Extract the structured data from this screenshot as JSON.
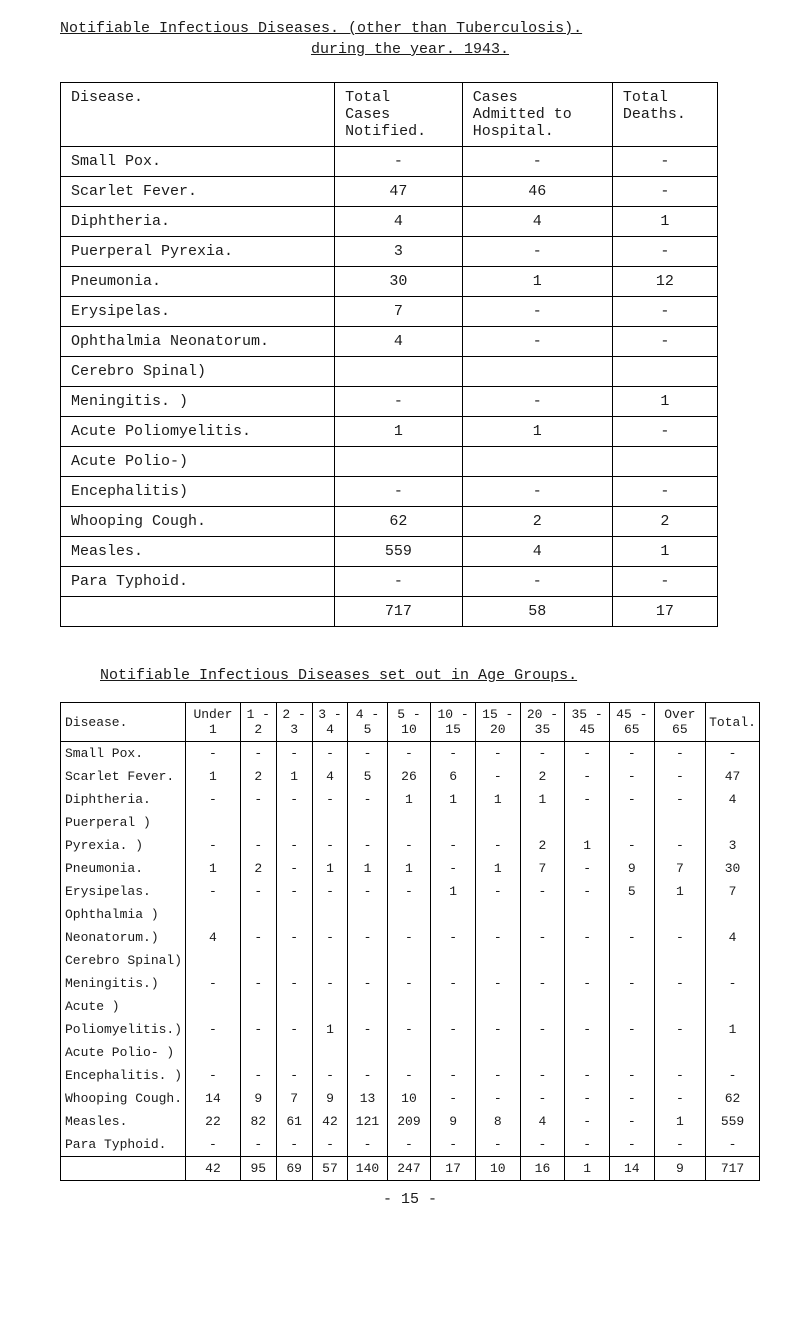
{
  "title": "Notifiable Infectious Diseases. (other than Tuberculosis).",
  "subtitle": "during the year. 1943.",
  "table1": {
    "headers": [
      "Disease.",
      "Total\nCases\nNotified.",
      "Cases\nAdmitted to\nHospital.",
      "Total\nDeaths."
    ],
    "rows": [
      {
        "d": "Small Pox.",
        "c": [
          "-",
          "-",
          "-"
        ]
      },
      {
        "d": "Scarlet Fever.",
        "c": [
          "47",
          "46",
          "-"
        ]
      },
      {
        "d": "Diphtheria.",
        "c": [
          "4",
          "4",
          "1"
        ]
      },
      {
        "d": "Puerperal Pyrexia.",
        "c": [
          "3",
          "-",
          "-"
        ]
      },
      {
        "d": "Pneumonia.",
        "c": [
          "30",
          "1",
          "12"
        ]
      },
      {
        "d": "Erysipelas.",
        "c": [
          "7",
          "-",
          "-"
        ]
      },
      {
        "d": "Ophthalmia Neonatorum.",
        "c": [
          "4",
          "-",
          "-"
        ]
      },
      {
        "d": "Cerebro Spinal)",
        "c": [
          "",
          "",
          ""
        ]
      },
      {
        "d": "Meningitis.   )",
        "c": [
          "-",
          "-",
          "1"
        ]
      },
      {
        "d": "Acute Poliomyelitis.",
        "c": [
          "1",
          "1",
          "-"
        ]
      },
      {
        "d": "Acute Polio-)",
        "c": [
          "",
          "",
          ""
        ]
      },
      {
        "d": "Encephalitis)",
        "c": [
          "-",
          "-",
          "-"
        ]
      },
      {
        "d": "Whooping Cough.",
        "c": [
          "62",
          "2",
          "2"
        ]
      },
      {
        "d": "Measles.",
        "c": [
          "559",
          "4",
          "1"
        ]
      },
      {
        "d": "Para Typhoid.",
        "c": [
          "-",
          "-",
          "-"
        ]
      }
    ],
    "total": [
      "",
      "717",
      "58",
      "17"
    ]
  },
  "section2_title": "Notifiable Infectious Diseases set out in Age Groups.",
  "table2": {
    "headers": [
      "Disease.",
      "Under 1",
      "1 - 2",
      "2 - 3",
      "3 - 4",
      "4 - 5",
      "5 - 10",
      "10 - 15",
      "15 - 20",
      "20 - 35",
      "35 - 45",
      "45 - 65",
      "Over 65",
      "Total."
    ],
    "rows": [
      {
        "d": "Small Pox.",
        "c": [
          "-",
          "-",
          "-",
          "-",
          "-",
          "-",
          "-",
          "-",
          "-",
          "-",
          "-",
          "-",
          "-"
        ]
      },
      {
        "d": "Scarlet Fever.",
        "c": [
          "1",
          "2",
          "1",
          "4",
          "5",
          "26",
          "6",
          "-",
          "2",
          "-",
          "-",
          "-",
          "47"
        ]
      },
      {
        "d": "Diphtheria.",
        "c": [
          "-",
          "-",
          "-",
          "-",
          "-",
          "1",
          "1",
          "1",
          "1",
          "-",
          "-",
          "-",
          "4"
        ]
      },
      {
        "d": "Puerperal )",
        "c": [
          "",
          "",
          "",
          "",
          "",
          "",
          "",
          "",
          "",
          "",
          "",
          "",
          ""
        ]
      },
      {
        "d": "Pyrexia.  )",
        "c": [
          "-",
          "-",
          "-",
          "-",
          "-",
          "-",
          "-",
          "-",
          "2",
          "1",
          "-",
          "-",
          "3"
        ]
      },
      {
        "d": "Pneumonia.",
        "c": [
          "1",
          "2",
          "-",
          "1",
          "1",
          "1",
          "-",
          "1",
          "7",
          "-",
          "9",
          "7",
          "30"
        ]
      },
      {
        "d": "Erysipelas.",
        "c": [
          "-",
          "-",
          "-",
          "-",
          "-",
          "-",
          "1",
          "-",
          "-",
          "-",
          "5",
          "1",
          "7"
        ]
      },
      {
        "d": "Ophthalmia )",
        "c": [
          "",
          "",
          "",
          "",
          "",
          "",
          "",
          "",
          "",
          "",
          "",
          "",
          ""
        ]
      },
      {
        "d": "Neonatorum.)",
        "c": [
          "4",
          "-",
          "-",
          "-",
          "-",
          "-",
          "-",
          "-",
          "-",
          "-",
          "-",
          "-",
          "4"
        ]
      },
      {
        "d": "Cerebro Spinal)",
        "c": [
          "",
          "",
          "",
          "",
          "",
          "",
          "",
          "",
          "",
          "",
          "",
          "",
          ""
        ]
      },
      {
        "d": "Meningitis.)",
        "c": [
          "-",
          "-",
          "-",
          "-",
          "-",
          "-",
          "-",
          "-",
          "-",
          "-",
          "-",
          "-",
          "-"
        ]
      },
      {
        "d": "Acute       )",
        "c": [
          "",
          "",
          "",
          "",
          "",
          "",
          "",
          "",
          "",
          "",
          "",
          "",
          ""
        ]
      },
      {
        "d": "Poliomyelitis.)",
        "c": [
          "-",
          "-",
          "-",
          "1",
          "-",
          "-",
          "-",
          "-",
          "-",
          "-",
          "-",
          "-",
          "1"
        ]
      },
      {
        "d": "Acute Polio- )",
        "c": [
          "",
          "",
          "",
          "",
          "",
          "",
          "",
          "",
          "",
          "",
          "",
          "",
          ""
        ]
      },
      {
        "d": "Encephalitis. )",
        "c": [
          "-",
          "-",
          "-",
          "-",
          "-",
          "-",
          "-",
          "-",
          "-",
          "-",
          "-",
          "-",
          "-"
        ]
      },
      {
        "d": "Whooping Cough.",
        "c": [
          "14",
          "9",
          "7",
          "9",
          "13",
          "10",
          "-",
          "-",
          "-",
          "-",
          "-",
          "-",
          "62"
        ]
      },
      {
        "d": "Measles.",
        "c": [
          "22",
          "82",
          "61",
          "42",
          "121",
          "209",
          "9",
          "8",
          "4",
          "-",
          "-",
          "1",
          "559"
        ]
      },
      {
        "d": "Para Typhoid.",
        "c": [
          "-",
          "-",
          "-",
          "-",
          "-",
          "-",
          "-",
          "-",
          "-",
          "-",
          "-",
          "-",
          "-"
        ]
      }
    ],
    "total": [
      "",
      "42",
      "95",
      "69",
      "57",
      "140",
      "247",
      "17",
      "10",
      "16",
      "1",
      "14",
      "9",
      "717"
    ]
  },
  "page_footer": "- 15 -"
}
